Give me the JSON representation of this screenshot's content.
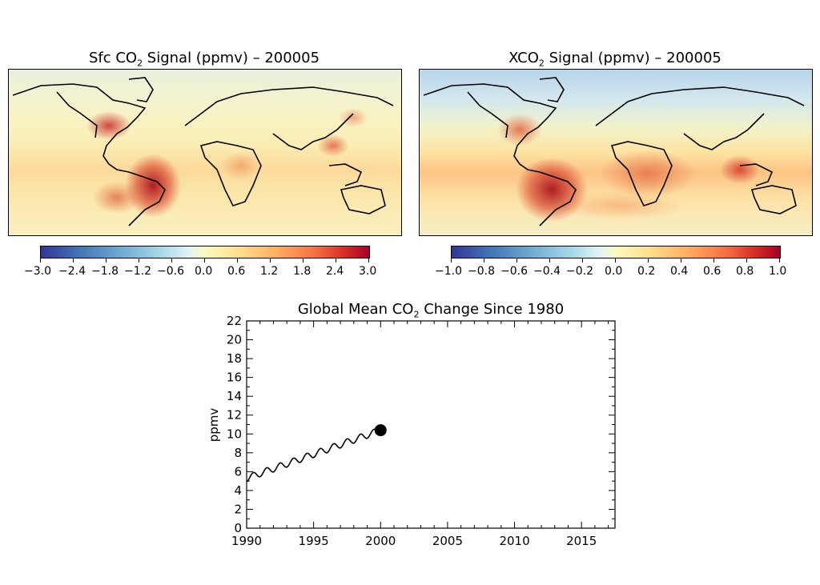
{
  "panels": {
    "sfc": {
      "title_pre": "Sfc CO",
      "title_sub": "2",
      "title_post": " Signal (ppmv) – 200005",
      "colorbar_ticks": [
        "−3.0",
        "−2.4",
        "−1.8",
        "−1.2",
        "−0.6",
        "0.0",
        "0.6",
        "1.2",
        "1.8",
        "2.4",
        "3.0"
      ],
      "colorbar_range": [
        -3.0,
        3.0
      ]
    },
    "xco2": {
      "title_pre": "XCO",
      "title_sub": "2",
      "title_post": " Signal (ppmv) – 200005",
      "colorbar_ticks": [
        "−1.0",
        "−0.8",
        "−0.6",
        "−0.4",
        "−0.2",
        "0.0",
        "0.2",
        "0.4",
        "0.6",
        "0.8",
        "1.0"
      ],
      "colorbar_range": [
        -1.0,
        1.0
      ]
    }
  },
  "colors": {
    "low": "#313695",
    "mid": "#fbfabf",
    "high": "#a50026"
  },
  "chart_data": {
    "type": "line",
    "title_pre": "Global Mean CO",
    "title_sub": "2",
    "title_post": " Change Since 1980",
    "xlabel": "",
    "ylabel": "ppmv",
    "xlim": [
      1990,
      2017.5
    ],
    "ylim": [
      0,
      22
    ],
    "xticks": [
      1990,
      1995,
      2000,
      2005,
      2010,
      2015
    ],
    "yticks": [
      0,
      2,
      4,
      6,
      8,
      10,
      12,
      14,
      16,
      18,
      20,
      22
    ],
    "series": [
      {
        "start": 1990.0,
        "end": 2000.0,
        "trend_start": 5.3,
        "trend_end": 10.4,
        "seasonal_amplitude": 0.35,
        "current_point": {
          "x": 2000.0,
          "y": 10.4
        }
      }
    ]
  }
}
